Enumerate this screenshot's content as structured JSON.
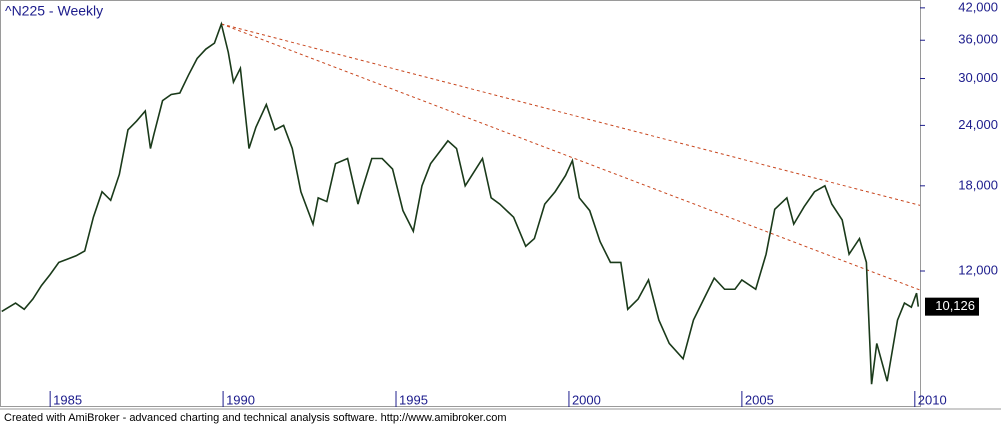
{
  "chart_data": {
    "type": "line",
    "title": "^N225 - Weekly",
    "footer": "Created with AmiBroker - advanced charting and technical analysis software. http://www.amibroker.com",
    "log_scale": true,
    "grid": false,
    "axis_color": "#1c1c8c",
    "xlim": [
      1983.55,
      2010.15
    ],
    "xticks": [
      1985,
      1990,
      1995,
      2000,
      2005,
      2010
    ],
    "ylim": [
      6340,
      43600
    ],
    "yticks": [
      {
        "value": 12000,
        "label": "12,000"
      },
      {
        "value": 18000,
        "label": "18,000"
      },
      {
        "value": 24000,
        "label": "24,000"
      },
      {
        "value": 30000,
        "label": "30,000"
      },
      {
        "value": 36000,
        "label": "36,000"
      },
      {
        "value": 42000,
        "label": "42,000"
      }
    ],
    "last_value": 10126,
    "last_value_label": "10,126",
    "series": [
      {
        "color": "#1a3a1a",
        "x": [
          1983.6,
          1984.0,
          1984.25,
          1984.5,
          1984.75,
          1985.0,
          1985.25,
          1985.5,
          1985.75,
          1986.0,
          1986.25,
          1986.5,
          1986.75,
          1987.0,
          1987.25,
          1987.5,
          1987.75,
          1987.9,
          1988.0,
          1988.25,
          1988.5,
          1988.75,
          1989.0,
          1989.25,
          1989.5,
          1989.75,
          1989.95,
          1990.15,
          1990.3,
          1990.5,
          1990.75,
          1990.95,
          1991.25,
          1991.5,
          1991.75,
          1992.0,
          1992.25,
          1992.6,
          1992.75,
          1993.0,
          1993.25,
          1993.6,
          1993.9,
          1994.0,
          1994.3,
          1994.6,
          1994.9,
          1995.2,
          1995.5,
          1995.75,
          1996.0,
          1996.5,
          1996.75,
          1997.0,
          1997.5,
          1997.75,
          1998.0,
          1998.4,
          1998.75,
          1999.0,
          1999.3,
          1999.6,
          1999.9,
          2000.1,
          2000.3,
          2000.6,
          2000.9,
          2001.2,
          2001.5,
          2001.7,
          2002.0,
          2002.3,
          2002.6,
          2002.9,
          2003.3,
          2003.6,
          2003.9,
          2004.2,
          2004.5,
          2004.8,
          2005.0,
          2005.4,
          2005.7,
          2005.95,
          2006.3,
          2006.5,
          2006.8,
          2007.1,
          2007.4,
          2007.6,
          2007.9,
          2008.1,
          2008.4,
          2008.6,
          2008.75,
          2008.9,
          2009.2,
          2009.5,
          2009.7,
          2009.9,
          2010.05,
          2010.1
        ],
        "values": [
          9900,
          10300,
          10000,
          10500,
          11200,
          11800,
          12500,
          12700,
          12900,
          13200,
          15500,
          17500,
          16800,
          19000,
          23500,
          24500,
          25700,
          21500,
          23000,
          27000,
          27800,
          28000,
          30500,
          33000,
          34500,
          35500,
          38900,
          34000,
          29500,
          31500,
          21500,
          23800,
          26500,
          23500,
          24000,
          21500,
          17500,
          15000,
          17000,
          16700,
          20000,
          20500,
          16500,
          17500,
          20500,
          20500,
          19500,
          16000,
          14500,
          18000,
          20000,
          22300,
          21500,
          18000,
          20500,
          17000,
          16500,
          15500,
          13500,
          14000,
          16500,
          17500,
          18900,
          20300,
          17000,
          16000,
          13800,
          12500,
          12500,
          10000,
          10500,
          11500,
          9500,
          8500,
          7900,
          9500,
          10500,
          11600,
          11000,
          11000,
          11500,
          11000,
          13000,
          16100,
          17000,
          15000,
          16300,
          17500,
          18000,
          16500,
          15300,
          13000,
          14000,
          12500,
          7000,
          8500,
          7100,
          9500,
          10300,
          10100,
          10800,
          10126
        ]
      }
    ],
    "trendlines": [
      {
        "color": "#c8461e",
        "x": [
          1989.95,
          2010.15
        ],
        "y": [
          38900,
          16400
        ]
      },
      {
        "color": "#c8461e",
        "x": [
          1989.95,
          2010.15
        ],
        "y": [
          38900,
          10960
        ]
      }
    ]
  }
}
